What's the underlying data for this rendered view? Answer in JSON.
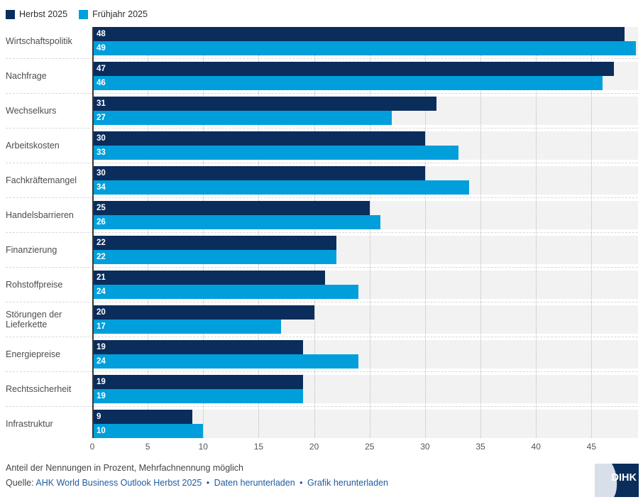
{
  "legend_title": "",
  "chart_data": {
    "type": "bar",
    "orientation": "horizontal",
    "categories": [
      "Wirtschaftspolitik",
      "Nachfrage",
      "Wechselkurs",
      "Arbeitskosten",
      "Fachkräftemangel",
      "Handelsbarrieren",
      "Finanzierung",
      "Rohstoffpreise",
      "Störungen der Lieferkette",
      "Energiepreise",
      "Rechtssicherheit",
      "Infrastruktur"
    ],
    "series": [
      {
        "name": "Herbst 2025",
        "color": "#0b2d5c",
        "values": [
          48,
          47,
          31,
          30,
          30,
          25,
          22,
          21,
          20,
          19,
          19,
          9
        ]
      },
      {
        "name": "Frühjahr 2025",
        "color": "#009fdb",
        "values": [
          49,
          46,
          27,
          33,
          34,
          26,
          22,
          24,
          17,
          24,
          19,
          10
        ]
      }
    ],
    "x_ticks": [
      0,
      5,
      10,
      15,
      20,
      25,
      30,
      35,
      40,
      45
    ],
    "x_max": 49.2,
    "grid": "dotted-vertical",
    "legend_position": "top-left",
    "value_labels": "inside-left",
    "xlabel": "",
    "ylabel": ""
  },
  "footer": {
    "note": "Anteil der Nennungen in Prozent, Mehrfachnennung möglich",
    "source_label": "Quelle:",
    "source_link": "AHK World Business Outlook Herbst 2025",
    "separator": "•",
    "download_data": "Daten herunterladen",
    "download_graphic": "Grafik herunterladen"
  },
  "logo": {
    "text": "DIHK",
    "navy": "#0b2d5c",
    "light": "#d9dfe8"
  }
}
